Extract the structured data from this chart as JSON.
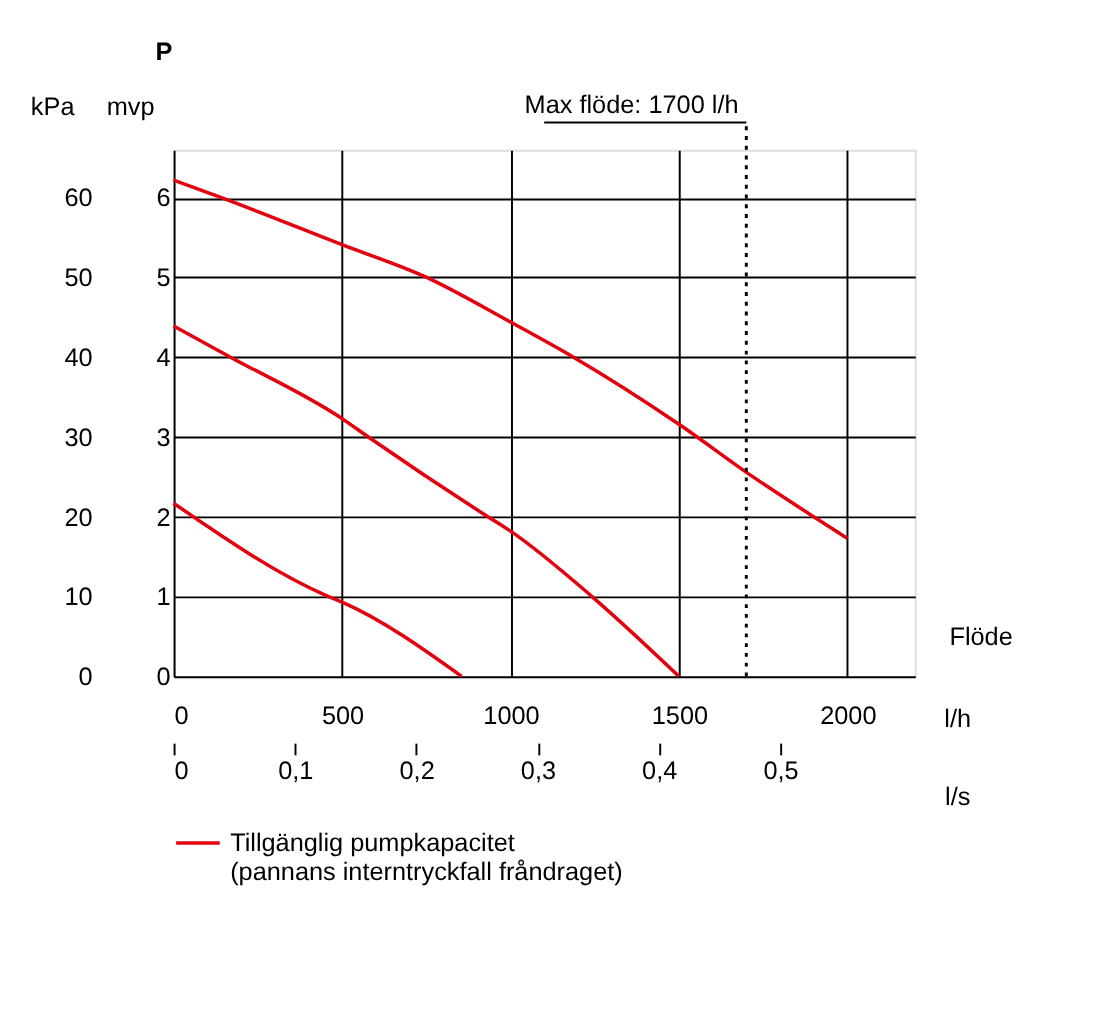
{
  "chart_data": {
    "type": "line",
    "xlabel": "l/h",
    "ylabel": "mvp",
    "y2label": "kPa",
    "x2label": "l/s",
    "annotations": [
      "P",
      "Flöde"
    ],
    "xlim": [
      0,
      2200
    ],
    "xticks": [
      0,
      500,
      1000,
      1500,
      2000
    ],
    "x2lim": [
      0,
      0.6111
    ],
    "x2ticks": [
      {
        "value": 0,
        "label": "0"
      },
      {
        "value": 0.1,
        "label": "0,1"
      },
      {
        "value": 0.2,
        "label": "0,2"
      },
      {
        "value": 0.3,
        "label": "0,3"
      },
      {
        "value": 0.4,
        "label": "0,4"
      },
      {
        "value": 0.5,
        "label": "0,5"
      }
    ],
    "ylim": [
      0,
      6.6
    ],
    "yticks": [
      0,
      1,
      2,
      3,
      4,
      5,
      6
    ],
    "y2lim": [
      0,
      66
    ],
    "y2ticks": [
      0,
      10,
      20,
      30,
      40,
      50,
      60
    ],
    "grid": true,
    "legend": "bottom",
    "line_style": "solid",
    "marker": "none",
    "ref_lines": [
      {
        "axis": "x",
        "value": 1700,
        "label": "Max flöde: 1700 l/h",
        "line_style": "dotted",
        "color": "#000000"
      }
    ],
    "series": [
      {
        "name": "Tillgänglig pumpkapacitet\n(pannans interntryckfall fråndraget)",
        "color": "#e3000f",
        "x": [
          0,
          142,
          500,
          751,
          1000,
          1187,
          1500,
          1720,
          1900,
          2000
        ],
        "values": [
          6.22,
          6,
          5.41,
          5,
          4.44,
          4,
          3.16,
          2.5,
          2.0,
          1.73
        ]
      },
      {
        "color": "#e3000f",
        "x": [
          0,
          169,
          500,
          578,
          933,
          1000,
          1242,
          1500
        ],
        "values": [
          4.39,
          4,
          3.23,
          3,
          2,
          1.82,
          1,
          0
        ]
      },
      {
        "color": "#e3000f",
        "x": [
          0,
          460,
          500,
          855
        ],
        "values": [
          2.17,
          1,
          0.93,
          0
        ]
      }
    ]
  }
}
